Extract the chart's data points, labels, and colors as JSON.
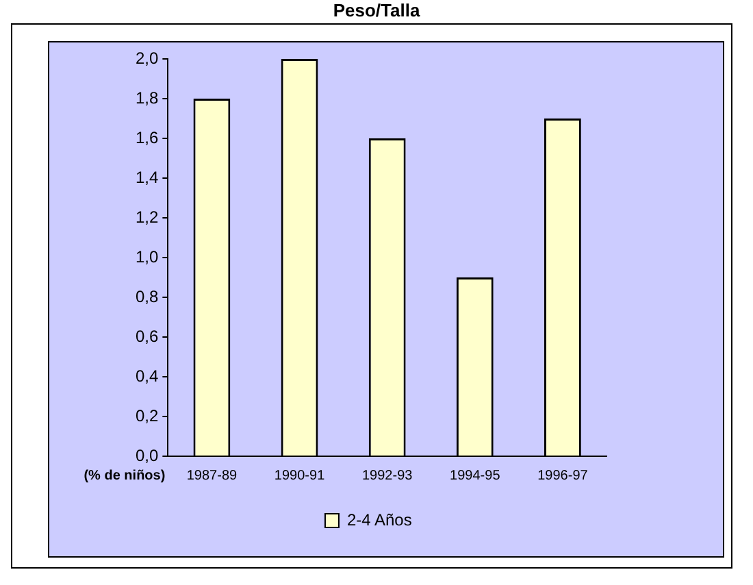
{
  "chart_data": {
    "type": "bar",
    "title": "Peso/Talla",
    "ylabel": "(% de niños)",
    "categories": [
      "1987-89",
      "1990-91",
      "1992-93",
      "1994-95",
      "1996-97"
    ],
    "series": [
      {
        "name": "2-4 Años",
        "color": "#ffffcc",
        "values": [
          1.8,
          2.0,
          1.6,
          0.9,
          1.7
        ]
      }
    ],
    "ylim": [
      0,
      2
    ],
    "yticks": [
      {
        "value": 0,
        "label": "0,0"
      },
      {
        "value": 0.2,
        "label": "0,2"
      },
      {
        "value": 0.4,
        "label": "0,4"
      },
      {
        "value": 0.6,
        "label": "0,6"
      },
      {
        "value": 0.8,
        "label": "0,8"
      },
      {
        "value": 1,
        "label": "1,0"
      },
      {
        "value": 1.2,
        "label": "1,2"
      },
      {
        "value": 1.4,
        "label": "1,4"
      },
      {
        "value": 1.6,
        "label": "1,6"
      },
      {
        "value": 1.8,
        "label": "1,8"
      },
      {
        "value": 2,
        "label": "2,0"
      }
    ],
    "grid": false,
    "legend": "bottom"
  }
}
